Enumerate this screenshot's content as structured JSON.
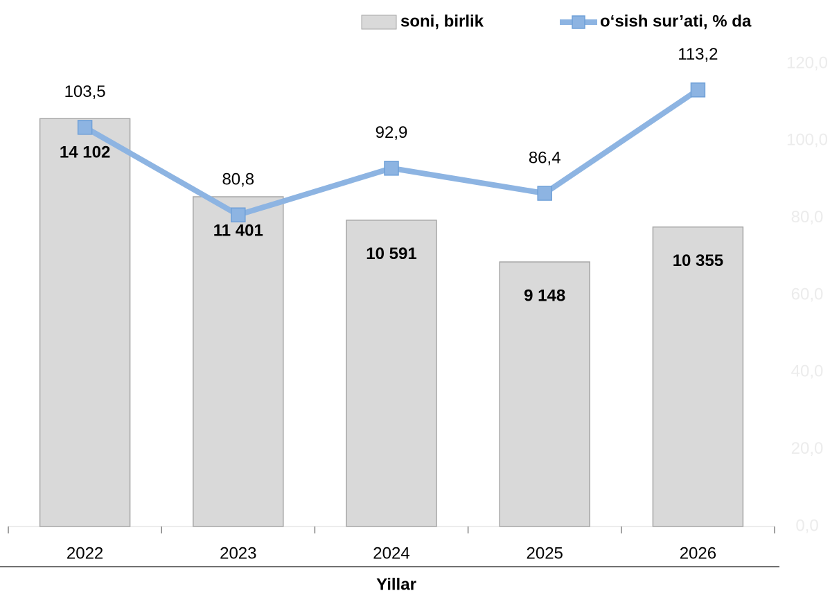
{
  "chart_data": {
    "type": "bar",
    "categories": [
      "2022",
      "2023",
      "2024",
      "2025",
      "2026"
    ],
    "series": [
      {
        "name": "soni, birlik",
        "type": "bar",
        "color": "#d9d9d9",
        "values": [
          14102,
          11401,
          10591,
          9148,
          10355
        ],
        "value_labels": [
          "14 102",
          "11 401",
          "10 591",
          "9 148",
          "10 355"
        ]
      },
      {
        "name": "o‘sish sur’ati, % da",
        "type": "line",
        "axis": "y2",
        "color": "#8db4e2",
        "values": [
          103.5,
          80.8,
          92.9,
          86.4,
          113.2
        ],
        "value_labels": [
          "103,5",
          "80,8",
          "92,9",
          "86,4",
          "113,2"
        ]
      }
    ],
    "x_label": "Yillar",
    "ylim": [
      0,
      16000
    ],
    "y2lim": [
      0,
      120
    ],
    "y2ticks": [
      {
        "value": 0,
        "label": "0,0"
      },
      {
        "value": 20,
        "label": "20,0"
      },
      {
        "value": 40,
        "label": "40,0"
      },
      {
        "value": 60,
        "label": "60,0"
      },
      {
        "value": 80,
        "label": "80,0"
      },
      {
        "value": 100,
        "label": "100,0"
      },
      {
        "value": 120,
        "label": "120,0"
      }
    ]
  }
}
